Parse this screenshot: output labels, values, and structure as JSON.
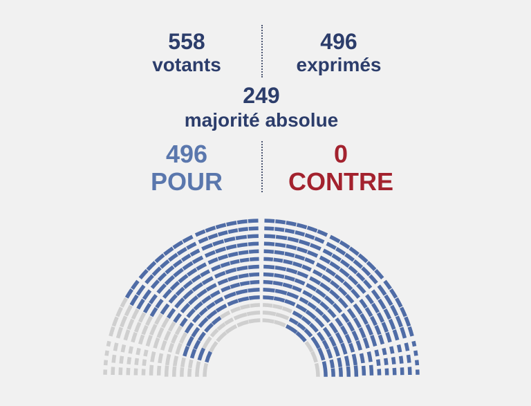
{
  "stats": {
    "votants": {
      "value": "558",
      "label": "votants"
    },
    "exprimes": {
      "value": "496",
      "label": "exprimés"
    },
    "majorite": {
      "value": "249",
      "label": "majorité absolue"
    },
    "pour": {
      "value": "496",
      "label": "POUR"
    },
    "contre": {
      "value": "0",
      "label": "CONTRE"
    }
  },
  "colors": {
    "text": "#2c3d6b",
    "pour": "#5a77ad",
    "contre": "#a3222e",
    "seat_pour": "#4f6ca6",
    "seat_other": "#cfcfcf",
    "background": "#f1f1f1"
  },
  "chart_data": {
    "type": "pie",
    "layout": "hemicycle",
    "categories": [
      "POUR",
      "CONTRE"
    ],
    "values": [
      496,
      0
    ],
    "total_votants": 558,
    "majorite_absolue": 249
  }
}
